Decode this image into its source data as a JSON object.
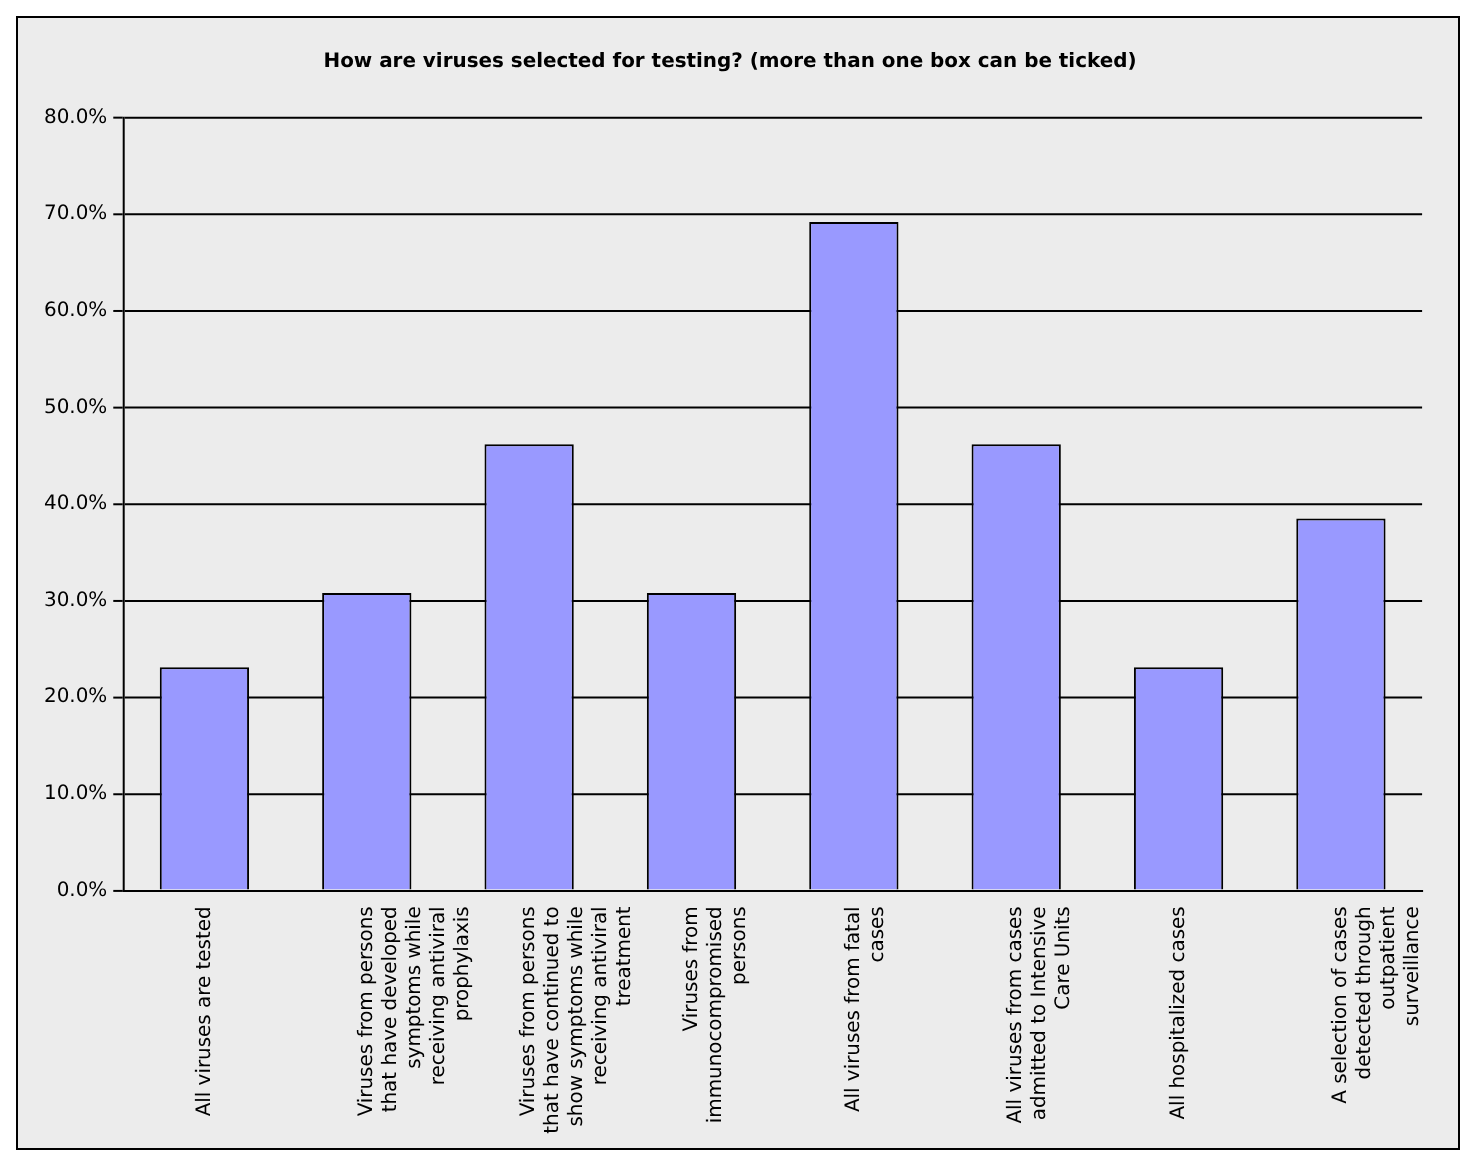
{
  "chart_data": {
    "type": "bar",
    "title": "How are viruses selected for testing? (more than one box can be ticked)",
    "categories": [
      "All viruses are tested",
      "Viruses from persons that have developed symptoms while receiving antiviral prophylaxis",
      "Viruses from persons that have continued to show symptoms while receiving antiviral treatment",
      "Viruses from immunocompromised persons",
      "All viruses from fatal cases",
      "All viruses from cases admitted to Intensive Care Units",
      "All hospitalized cases",
      "A selection of cases detected through outpatient surveillance"
    ],
    "values": [
      23.1,
      30.8,
      46.2,
      30.8,
      69.2,
      46.2,
      23.1,
      38.5
    ],
    "color": "#9999ff",
    "ylim": [
      0,
      80
    ],
    "yticks": [
      {
        "value": 0,
        "label": "0.0%"
      },
      {
        "value": 10,
        "label": "10.0%"
      },
      {
        "value": 20,
        "label": "20.0%"
      },
      {
        "value": 30,
        "label": "30.0%"
      },
      {
        "value": 40,
        "label": "40.0%"
      },
      {
        "value": 50,
        "label": "50.0%"
      },
      {
        "value": 60,
        "label": "60.0%"
      },
      {
        "value": 70,
        "label": "70.0%"
      },
      {
        "value": 80,
        "label": "80.0%"
      }
    ],
    "grid": "y",
    "legend": false
  }
}
